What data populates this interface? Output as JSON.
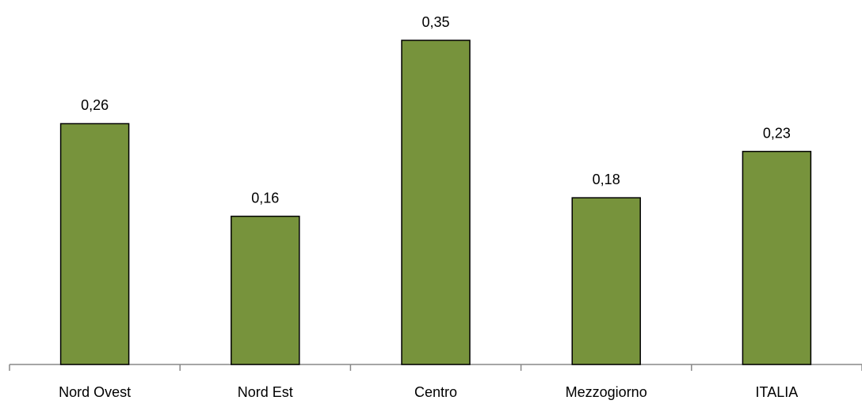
{
  "chart_data": {
    "type": "bar",
    "categories": [
      "Nord Ovest",
      "Nord Est",
      "Centro",
      "Mezzogiorno",
      "ITALIA"
    ],
    "values": [
      0.26,
      0.16,
      0.35,
      0.18,
      0.23
    ],
    "value_labels": [
      "0,26",
      "0,16",
      "0,35",
      "0,18",
      "0,23"
    ],
    "color": "#77933c"
  }
}
